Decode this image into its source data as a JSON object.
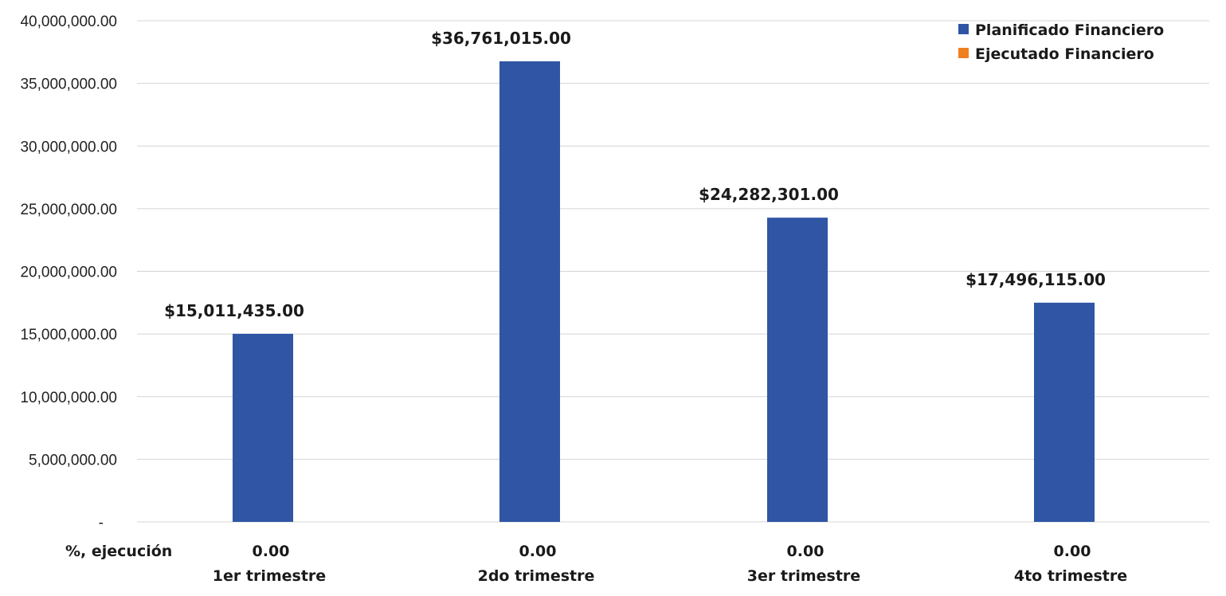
{
  "chart_data": {
    "type": "bar",
    "categories": [
      "1er trimestre",
      "2do trimestre",
      "3er trimestre",
      "4to trimestre"
    ],
    "series": [
      {
        "name": "Planificado Financiero",
        "color": "#2f55a4",
        "values": [
          15011435.0,
          36761015.0,
          24282301.0,
          17496115.0
        ],
        "data_labels": [
          "$15,011,435.00",
          "$36,761,015.00",
          "$24,282,301.00",
          "$17,496,115.00"
        ]
      },
      {
        "name": "Ejecutado Financiero",
        "color": "#f0801f",
        "values": [
          0,
          0,
          0,
          0
        ]
      }
    ],
    "ylim": [
      0,
      40000000
    ],
    "y_ticks": [
      {
        "value": 0,
        "label": "-"
      },
      {
        "value": 5000000,
        "label": "5,000,000.00"
      },
      {
        "value": 10000000,
        "label": "10,000,000.00"
      },
      {
        "value": 15000000,
        "label": "15,000,000.00"
      },
      {
        "value": 20000000,
        "label": "20,000,000.00"
      },
      {
        "value": 25000000,
        "label": "25,000,000.00"
      },
      {
        "value": 30000000,
        "label": "30,000,000.00"
      },
      {
        "value": 35000000,
        "label": "35,000,000.00"
      },
      {
        "value": 40000000,
        "label": "40,000,000.00"
      }
    ],
    "grid": true,
    "legend_position": "top-right",
    "execution_row": {
      "label": "%, ejecución",
      "values": [
        "0.00",
        "0.00",
        "0.00",
        "0.00"
      ]
    }
  }
}
